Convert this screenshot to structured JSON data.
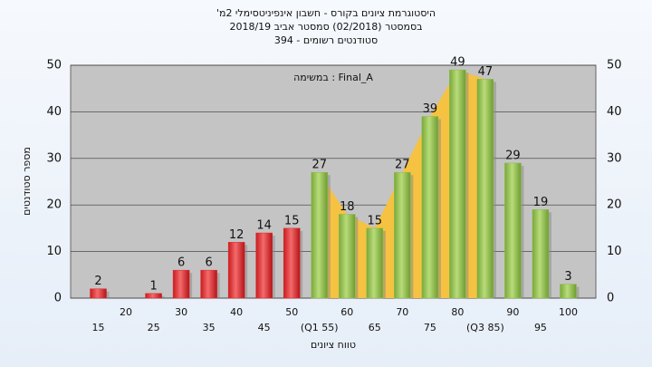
{
  "chart_data": {
    "type": "bar",
    "title": "היסטוגרמת ציונים בקורס - חשבון אינפיניטסימלי 2מ'",
    "subtitle": "בסמסטר  (02/2018)  סמסטר אביב 2018/19",
    "subtitle2": "סטודנטים רשומים - 394",
    "annotation": "במשימה : Final_A",
    "y_label": "מספר סטודנטים",
    "x_label": "טווח ציונים",
    "categories": [
      "15",
      "20",
      "25",
      "30",
      "35",
      "40",
      "45",
      "50",
      "(Q1 55)",
      "60",
      "65",
      "70",
      "75",
      "80",
      "(Q3 85)",
      "90",
      "95",
      "100"
    ],
    "values": [
      2,
      0,
      1,
      6,
      6,
      12,
      14,
      15,
      27,
      18,
      15,
      27,
      39,
      49,
      47,
      29,
      19,
      3
    ],
    "colors": [
      "#e0282c",
      "#e0282c",
      "#e0282c",
      "#e0282c",
      "#e0282c",
      "#e0282c",
      "#e0282c",
      "#e0282c",
      "#8bbd4a",
      "#8bbd4a",
      "#8bbd4a",
      "#8bbd4a",
      "#8bbd4a",
      "#8bbd4a",
      "#8bbd4a",
      "#8bbd4a",
      "#8bbd4a",
      "#8bbd4a"
    ],
    "area_color": "#f5c242",
    "ylim": [
      0,
      50
    ],
    "yticks": [
      0,
      10,
      20,
      30,
      40,
      50
    ],
    "grid": true
  }
}
